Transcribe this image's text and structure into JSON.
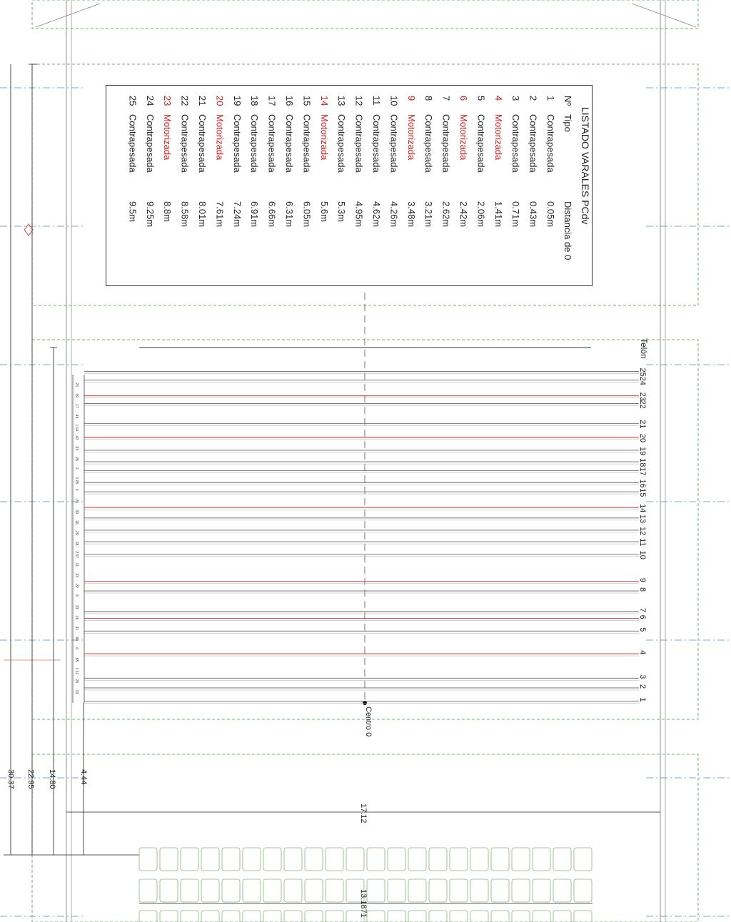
{
  "legend": {
    "title": "LISTADO VARALES PCdv",
    "headers": {
      "num": "Nº",
      "tipo": "Tipo",
      "dist": "Distancia de 0"
    },
    "rows": [
      {
        "n": "1",
        "tipo": "Contrapesada",
        "dist": "0.05m",
        "motor": false
      },
      {
        "n": "2",
        "tipo": "Contrapesada",
        "dist": "0.43m",
        "motor": false
      },
      {
        "n": "3",
        "tipo": "Contrapesada",
        "dist": "0.71m",
        "motor": false
      },
      {
        "n": "4",
        "tipo": "Motorizada",
        "dist": "1.41m",
        "motor": true
      },
      {
        "n": "5",
        "tipo": "Contrapesada",
        "dist": "2.06m",
        "motor": false
      },
      {
        "n": "6",
        "tipo": "Motorizada",
        "dist": "2.42m",
        "motor": true
      },
      {
        "n": "7",
        "tipo": "Contrapesada",
        "dist": "2.62m",
        "motor": false
      },
      {
        "n": "8",
        "tipo": "Contrapesada",
        "dist": "3.21m",
        "motor": false
      },
      {
        "n": "9",
        "tipo": "Motorizada",
        "dist": "3.48m",
        "motor": true
      },
      {
        "n": "10",
        "tipo": "Contrapesada",
        "dist": "4.26m",
        "motor": false
      },
      {
        "n": "11",
        "tipo": "Contrapesada",
        "dist": "4.62m",
        "motor": false
      },
      {
        "n": "12",
        "tipo": "Contrapesada",
        "dist": "4.95m",
        "motor": false
      },
      {
        "n": "13",
        "tipo": "Contrapesada",
        "dist": "5.3m",
        "motor": false
      },
      {
        "n": "14",
        "tipo": "Motorizada",
        "dist": "5.6m",
        "motor": true
      },
      {
        "n": "15",
        "tipo": "Contrapesada",
        "dist": "6.05m",
        "motor": false
      },
      {
        "n": "16",
        "tipo": "Contrapesada",
        "dist": "6.31m",
        "motor": false
      },
      {
        "n": "17",
        "tipo": "Contrapesada",
        "dist": "6.66m",
        "motor": false
      },
      {
        "n": "18",
        "tipo": "Contrapesada",
        "dist": "6.91m",
        "motor": false
      },
      {
        "n": "19",
        "tipo": "Contrapesada",
        "dist": "7.24m",
        "motor": false
      },
      {
        "n": "20",
        "tipo": "Motorizada",
        "dist": "7.61m",
        "motor": true
      },
      {
        "n": "21",
        "tipo": "Contrapesada",
        "dist": "8.01m",
        "motor": false
      },
      {
        "n": "22",
        "tipo": "Contrapesada",
        "dist": "8.58m",
        "motor": false
      },
      {
        "n": "23",
        "tipo": "Motorizada",
        "dist": "8.8m",
        "motor": true
      },
      {
        "n": "24",
        "tipo": "Contrapesada",
        "dist": "9.25m",
        "motor": false
      },
      {
        "n": "25",
        "tipo": "Contrapesada",
        "dist": "9.5m",
        "motor": false
      }
    ]
  },
  "telon_label": "Telón",
  "centro_label": "Centro 0",
  "spacing_labels": [
    ".23",
    ".39",
    ".17",
    ".45",
    "1.14",
    ".40",
    ".33",
    ".28",
    ".2",
    "1.05",
    ".3",
    ".21",
    ".39",
    ".26",
    ".29",
    ".38",
    "2.07",
    ".31",
    ".23",
    ".22",
    ".8",
    ".33",
    ".16",
    ".31",
    ".96",
    ".6",
    ".65",
    "1.31",
    ".25",
    ".33"
  ],
  "dimensions": {
    "d1": "30.37",
    "d2": "22.95",
    "d3": "14.80",
    "d4": "4.44",
    "width": "17.12",
    "seating": "13.1871"
  },
  "colors": {
    "line": "#555555",
    "motor": "#cc2222",
    "guide": "#3aa03a",
    "axis": "#4a8ec8"
  }
}
